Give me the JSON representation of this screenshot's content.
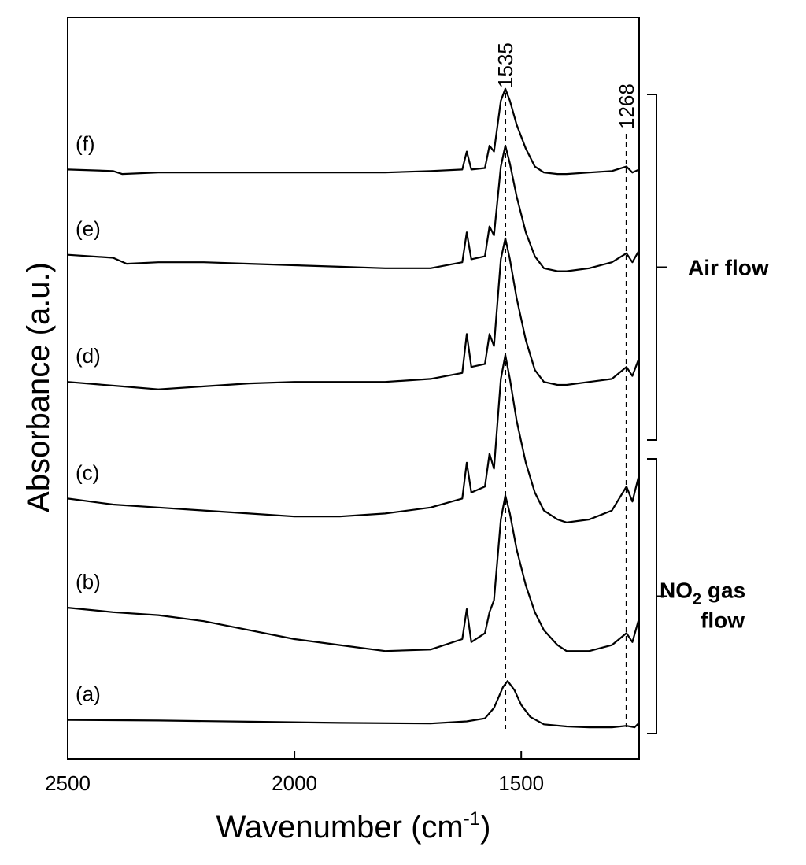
{
  "chart_data": {
    "type": "line",
    "title": "",
    "xlabel": "Wavenumber (cm",
    "xlabel_sup": "-1",
    "xlabel_close": ")",
    "ylabel": "Absorbance (a.u.)",
    "xlim": [
      2500,
      1240
    ],
    "x_reversed": true,
    "xticks": [
      2500,
      2000,
      1500
    ],
    "ytick_labels": false,
    "grid": false,
    "legend": "none",
    "series": [
      {
        "name": "(a)",
        "offset": 0.0,
        "points": [
          [
            2500,
            0.3
          ],
          [
            2300,
            0.28
          ],
          [
            2100,
            0.24
          ],
          [
            1900,
            0.2
          ],
          [
            1700,
            0.18
          ],
          [
            1620,
            0.25
          ],
          [
            1580,
            0.35
          ],
          [
            1560,
            0.7
          ],
          [
            1540,
            1.4
          ],
          [
            1530,
            1.6
          ],
          [
            1515,
            1.3
          ],
          [
            1500,
            0.8
          ],
          [
            1480,
            0.4
          ],
          [
            1450,
            0.15
          ],
          [
            1400,
            0.08
          ],
          [
            1350,
            0.05
          ],
          [
            1300,
            0.05
          ],
          [
            1268,
            0.1
          ],
          [
            1250,
            0.05
          ],
          [
            1240,
            0.2
          ]
        ]
      },
      {
        "name": "(b)",
        "offset": 3.8,
        "points": [
          [
            2500,
            0.25
          ],
          [
            2400,
            0.1
          ],
          [
            2300,
            0.0
          ],
          [
            2200,
            -0.2
          ],
          [
            2100,
            -0.5
          ],
          [
            2000,
            -0.8
          ],
          [
            1900,
            -1.0
          ],
          [
            1800,
            -1.2
          ],
          [
            1700,
            -1.15
          ],
          [
            1630,
            -0.8
          ],
          [
            1620,
            0.2
          ],
          [
            1610,
            -0.9
          ],
          [
            1580,
            -0.6
          ],
          [
            1570,
            0.1
          ],
          [
            1560,
            0.5
          ],
          [
            1545,
            3.2
          ],
          [
            1535,
            4.0
          ],
          [
            1525,
            3.4
          ],
          [
            1510,
            2.2
          ],
          [
            1490,
            1.0
          ],
          [
            1470,
            0.1
          ],
          [
            1450,
            -0.5
          ],
          [
            1420,
            -1.0
          ],
          [
            1400,
            -1.2
          ],
          [
            1350,
            -1.2
          ],
          [
            1300,
            -1.0
          ],
          [
            1268,
            -0.6
          ],
          [
            1255,
            -0.9
          ],
          [
            1240,
            -0.1
          ]
        ]
      },
      {
        "name": "(c)",
        "offset": 7.7,
        "points": [
          [
            2500,
            0.0
          ],
          [
            2400,
            -0.2
          ],
          [
            2300,
            -0.3
          ],
          [
            2200,
            -0.4
          ],
          [
            2100,
            -0.5
          ],
          [
            2000,
            -0.6
          ],
          [
            1900,
            -0.6
          ],
          [
            1800,
            -0.5
          ],
          [
            1700,
            -0.3
          ],
          [
            1630,
            0.0
          ],
          [
            1620,
            1.2
          ],
          [
            1610,
            0.2
          ],
          [
            1580,
            0.4
          ],
          [
            1570,
            1.5
          ],
          [
            1560,
            1.0
          ],
          [
            1545,
            4.0
          ],
          [
            1535,
            4.8
          ],
          [
            1525,
            4.0
          ],
          [
            1510,
            2.6
          ],
          [
            1490,
            1.2
          ],
          [
            1470,
            0.2
          ],
          [
            1450,
            -0.4
          ],
          [
            1420,
            -0.7
          ],
          [
            1400,
            -0.8
          ],
          [
            1350,
            -0.7
          ],
          [
            1300,
            -0.4
          ],
          [
            1268,
            0.4
          ],
          [
            1255,
            -0.1
          ],
          [
            1240,
            0.8
          ]
        ]
      },
      {
        "name": "(d)",
        "offset": 11.6,
        "points": [
          [
            2500,
            0.0
          ],
          [
            2380,
            -0.15
          ],
          [
            2300,
            -0.25
          ],
          [
            2200,
            -0.15
          ],
          [
            2100,
            -0.05
          ],
          [
            2000,
            0.0
          ],
          [
            1900,
            0.0
          ],
          [
            1800,
            0.0
          ],
          [
            1700,
            0.1
          ],
          [
            1630,
            0.3
          ],
          [
            1620,
            1.6
          ],
          [
            1610,
            0.5
          ],
          [
            1580,
            0.6
          ],
          [
            1570,
            1.6
          ],
          [
            1560,
            1.2
          ],
          [
            1545,
            4.1
          ],
          [
            1535,
            4.8
          ],
          [
            1525,
            4.1
          ],
          [
            1510,
            2.8
          ],
          [
            1490,
            1.4
          ],
          [
            1470,
            0.4
          ],
          [
            1450,
            0.0
          ],
          [
            1420,
            -0.1
          ],
          [
            1400,
            -0.1
          ],
          [
            1350,
            0.0
          ],
          [
            1300,
            0.1
          ],
          [
            1268,
            0.5
          ],
          [
            1255,
            0.2
          ],
          [
            1240,
            0.8
          ]
        ]
      },
      {
        "name": "(e)",
        "offset": 15.6,
        "points": [
          [
            2500,
            0.25
          ],
          [
            2400,
            0.15
          ],
          [
            2370,
            -0.05
          ],
          [
            2300,
            0.0
          ],
          [
            2200,
            0.0
          ],
          [
            2100,
            -0.05
          ],
          [
            2000,
            -0.1
          ],
          [
            1900,
            -0.15
          ],
          [
            1800,
            -0.2
          ],
          [
            1700,
            -0.2
          ],
          [
            1630,
            0.0
          ],
          [
            1620,
            1.0
          ],
          [
            1610,
            0.1
          ],
          [
            1580,
            0.2
          ],
          [
            1570,
            1.2
          ],
          [
            1560,
            0.9
          ],
          [
            1545,
            3.2
          ],
          [
            1535,
            3.9
          ],
          [
            1525,
            3.3
          ],
          [
            1510,
            2.2
          ],
          [
            1490,
            1.0
          ],
          [
            1470,
            0.2
          ],
          [
            1450,
            -0.2
          ],
          [
            1420,
            -0.3
          ],
          [
            1400,
            -0.3
          ],
          [
            1350,
            -0.2
          ],
          [
            1300,
            0.0
          ],
          [
            1268,
            0.3
          ],
          [
            1255,
            0.0
          ],
          [
            1240,
            0.4
          ]
        ]
      },
      {
        "name": "(f)",
        "offset": 18.6,
        "points": [
          [
            2500,
            0.1
          ],
          [
            2400,
            0.05
          ],
          [
            2380,
            -0.05
          ],
          [
            2300,
            0.0
          ],
          [
            2200,
            0.0
          ],
          [
            2100,
            0.0
          ],
          [
            2000,
            0.0
          ],
          [
            1900,
            0.0
          ],
          [
            1800,
            0.0
          ],
          [
            1700,
            0.05
          ],
          [
            1630,
            0.1
          ],
          [
            1620,
            0.7
          ],
          [
            1610,
            0.1
          ],
          [
            1580,
            0.15
          ],
          [
            1570,
            0.9
          ],
          [
            1560,
            0.7
          ],
          [
            1545,
            2.4
          ],
          [
            1535,
            2.8
          ],
          [
            1525,
            2.4
          ],
          [
            1510,
            1.6
          ],
          [
            1490,
            0.8
          ],
          [
            1470,
            0.2
          ],
          [
            1450,
            0.0
          ],
          [
            1420,
            -0.05
          ],
          [
            1400,
            -0.05
          ],
          [
            1350,
            0.0
          ],
          [
            1300,
            0.05
          ],
          [
            1268,
            0.2
          ],
          [
            1255,
            0.0
          ],
          [
            1240,
            0.1
          ]
        ]
      }
    ],
    "peak_markers": [
      {
        "label": "1535",
        "x": 1535
      },
      {
        "label": "1268",
        "x": 1268
      }
    ],
    "groups": [
      {
        "label": "Air flow",
        "from_series": "(d)",
        "to_series": "(f)"
      },
      {
        "label_prefix": "NO",
        "label_sub": "2",
        "label_suffix": " gas",
        "label_line2": "flow",
        "from_series": "(a)",
        "to_series": "(c)"
      }
    ]
  }
}
